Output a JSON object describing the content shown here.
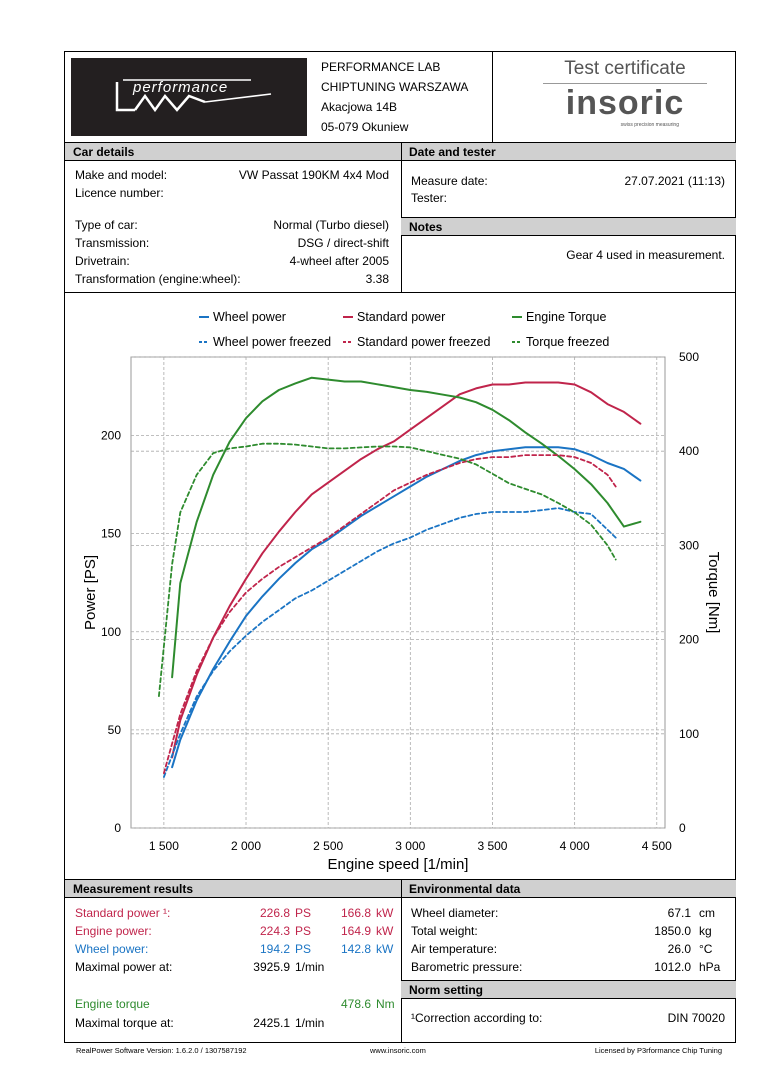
{
  "header": {
    "lab_name": "PERFORMANCE LAB",
    "lab_subtitle": "CHIPTUNING WARSZAWA",
    "address_line1": "Akacjowa 14B",
    "address_line2": "05-079 Okuniew",
    "logo_text": "performance",
    "certificate_title": "Test certificate",
    "brand_name": "insoric",
    "brand_tagline": "swiss precision measuring"
  },
  "car_details": {
    "heading": "Car details",
    "make_label": "Make and model:",
    "make_value": "VW Passat 190KM 4x4 Mod",
    "licence_label": "Licence number:",
    "licence_value": "",
    "type_label": "Type of car:",
    "type_value": "Normal (Turbo diesel)",
    "transmission_label": "Transmission:",
    "transmission_value": "DSG / direct-shift",
    "drivetrain_label": "Drivetrain:",
    "drivetrain_value": "4-wheel after 2005",
    "transformation_label": "Transformation (engine:wheel):",
    "transformation_value": "3.38"
  },
  "date_tester": {
    "heading": "Date and tester",
    "measure_label": "Measure date:",
    "measure_value": "27.07.2021 (11:13)",
    "tester_label": "Tester:",
    "tester_value": ""
  },
  "notes": {
    "heading": "Notes",
    "text": "Gear 4 used in measurement."
  },
  "chart_data": {
    "type": "line",
    "xlabel": "Engine speed [1/min]",
    "ylabel": "Power [PS]",
    "y2label": "Torque [Nm]",
    "xlim": [
      1300,
      4550
    ],
    "ylim": [
      0,
      240
    ],
    "y2lim": [
      0,
      500
    ],
    "x_ticks": [
      1500,
      2000,
      2500,
      3000,
      3500,
      4000,
      4500
    ],
    "x_tick_labels": [
      "1 500",
      "2 000",
      "2 500",
      "3 000",
      "3 500",
      "4 000",
      "4 500"
    ],
    "y_ticks": [
      0,
      50,
      100,
      150,
      200
    ],
    "y_tick_labels": [
      "0",
      "50",
      "100",
      "150",
      "200"
    ],
    "y2_ticks": [
      0,
      100,
      200,
      300,
      400,
      500
    ],
    "y2_tick_labels": [
      "0",
      "100",
      "200",
      "300",
      "400",
      "500"
    ],
    "legend": [
      "Wheel power",
      "Standard power",
      "Engine Torque",
      "Wheel power freezed",
      "Standard power freezed",
      "Torque freezed"
    ],
    "legend_position": "top",
    "grid": true,
    "series": [
      {
        "name": "Wheel power",
        "axis": "left",
        "style": "solid",
        "color": "#1a74c4",
        "x": [
          1550,
          1600,
          1700,
          1800,
          1900,
          2000,
          2100,
          2200,
          2300,
          2400,
          2500,
          2600,
          2700,
          2800,
          2900,
          3000,
          3100,
          3200,
          3300,
          3400,
          3500,
          3600,
          3700,
          3800,
          3900,
          4000,
          4100,
          4200,
          4300,
          4400
        ],
        "y": [
          31,
          45,
          65,
          81,
          95,
          108,
          118,
          127,
          135,
          142,
          147,
          153,
          159,
          164,
          169,
          174,
          179,
          183,
          187,
          190,
          192,
          193,
          194,
          194,
          194,
          193,
          190,
          186,
          183,
          177
        ]
      },
      {
        "name": "Standard power",
        "axis": "left",
        "style": "solid",
        "color": "#c0244b",
        "x": [
          1550,
          1600,
          1700,
          1800,
          1900,
          2000,
          2100,
          2200,
          2300,
          2400,
          2500,
          2600,
          2700,
          2800,
          2900,
          3000,
          3100,
          3200,
          3300,
          3400,
          3500,
          3600,
          3700,
          3800,
          3900,
          4000,
          4100,
          4200,
          4300,
          4400
        ],
        "y": [
          36,
          55,
          78,
          97,
          113,
          127,
          140,
          151,
          161,
          170,
          176,
          182,
          188,
          193,
          197,
          203,
          209,
          215,
          221,
          224,
          226,
          226,
          227,
          227,
          227,
          226,
          222,
          216,
          212,
          206
        ]
      },
      {
        "name": "Engine Torque",
        "axis": "right",
        "style": "solid",
        "color": "#2e8b2e",
        "x": [
          1550,
          1600,
          1700,
          1800,
          1900,
          2000,
          2100,
          2200,
          2300,
          2400,
          2500,
          2600,
          2700,
          2800,
          2900,
          3000,
          3100,
          3200,
          3300,
          3400,
          3500,
          3600,
          3700,
          3800,
          3900,
          4000,
          4100,
          4200,
          4300,
          4400
        ],
        "y": [
          160,
          260,
          325,
          375,
          410,
          435,
          453,
          465,
          472,
          478,
          476,
          474,
          474,
          471,
          468,
          465,
          463,
          460,
          457,
          452,
          444,
          433,
          420,
          408,
          395,
          381,
          365,
          345,
          320,
          325
        ]
      },
      {
        "name": "Wheel power freezed",
        "axis": "left",
        "style": "dashed",
        "color": "#1a74c4",
        "x": [
          1500,
          1600,
          1700,
          1800,
          1900,
          2000,
          2100,
          2200,
          2300,
          2400,
          2500,
          2600,
          2700,
          2800,
          2900,
          3000,
          3100,
          3200,
          3300,
          3400,
          3500,
          3600,
          3700,
          3800,
          3900,
          4000,
          4100,
          4200,
          4250
        ],
        "y": [
          26,
          48,
          67,
          80,
          90,
          98,
          105,
          111,
          117,
          121,
          126,
          131,
          136,
          141,
          145,
          148,
          152,
          155,
          158,
          160,
          161,
          161,
          161,
          162,
          163,
          161,
          160,
          152,
          148
        ]
      },
      {
        "name": "Standard power freezed",
        "axis": "left",
        "style": "dashed",
        "color": "#c0244b",
        "x": [
          1500,
          1600,
          1700,
          1800,
          1900,
          2000,
          2100,
          2200,
          2300,
          2400,
          2500,
          2600,
          2700,
          2800,
          2900,
          3000,
          3100,
          3200,
          3300,
          3400,
          3500,
          3600,
          3700,
          3800,
          3900,
          4000,
          4100,
          4200,
          4250
        ],
        "y": [
          28,
          58,
          80,
          97,
          110,
          120,
          127,
          133,
          138,
          143,
          148,
          154,
          160,
          166,
          172,
          176,
          180,
          183,
          186,
          188,
          189,
          189,
          190,
          190,
          190,
          189,
          186,
          180,
          174
        ]
      },
      {
        "name": "Torque freezed",
        "axis": "right",
        "style": "dashed",
        "color": "#2e8b2e",
        "x": [
          1470,
          1550,
          1600,
          1700,
          1800,
          1900,
          2000,
          2100,
          2200,
          2300,
          2400,
          2500,
          2600,
          2700,
          2800,
          2900,
          3000,
          3100,
          3200,
          3300,
          3400,
          3500,
          3600,
          3700,
          3800,
          3900,
          4000,
          4100,
          4200,
          4250
        ],
        "y": [
          140,
          280,
          335,
          375,
          398,
          403,
          405,
          408,
          408,
          407,
          405,
          403,
          403,
          404,
          405,
          405,
          404,
          400,
          396,
          392,
          386,
          376,
          366,
          360,
          354,
          345,
          335,
          322,
          300,
          285
        ]
      }
    ]
  },
  "measurement": {
    "heading": "Measurement results",
    "standard_label": "Standard power ¹:",
    "standard_ps": "226.8",
    "standard_kw": "166.8",
    "engine_label": "Engine power:",
    "engine_ps": "224.3",
    "engine_kw": "164.9",
    "wheel_label": "Wheel power:",
    "wheel_ps": "194.2",
    "wheel_kw": "142.8",
    "unit_ps": "PS",
    "unit_kw": "kW",
    "max_power_label": "Maximal power at:",
    "max_power_value": "3925.9",
    "unit_rpm": "1/min",
    "torque_label": "Engine torque",
    "torque_value": "478.6",
    "unit_nm": "Nm",
    "max_torque_label": "Maximal torque at:",
    "max_torque_value": "2425.1"
  },
  "environment": {
    "heading": "Environmental data",
    "wheel_diam_label": "Wheel diameter:",
    "wheel_diam_value": "67.1",
    "wheel_diam_unit": "cm",
    "weight_label": "Total weight:",
    "weight_value": "1850.0",
    "weight_unit": "kg",
    "air_label": "Air temperature:",
    "air_value": "26.0",
    "air_unit": "°C",
    "baro_label": "Barometric pressure:",
    "baro_value": "1012.0",
    "baro_unit": "hPa"
  },
  "norm": {
    "heading": "Norm setting",
    "correction_label": "¹Correction according to:",
    "correction_value": "DIN 70020"
  },
  "footer": {
    "software": "RealPower Software Version: 1.6.2.0 / 1307587192",
    "website": "www.insoric.com",
    "license": "Licensed by P3rformance Chip Tuning"
  }
}
